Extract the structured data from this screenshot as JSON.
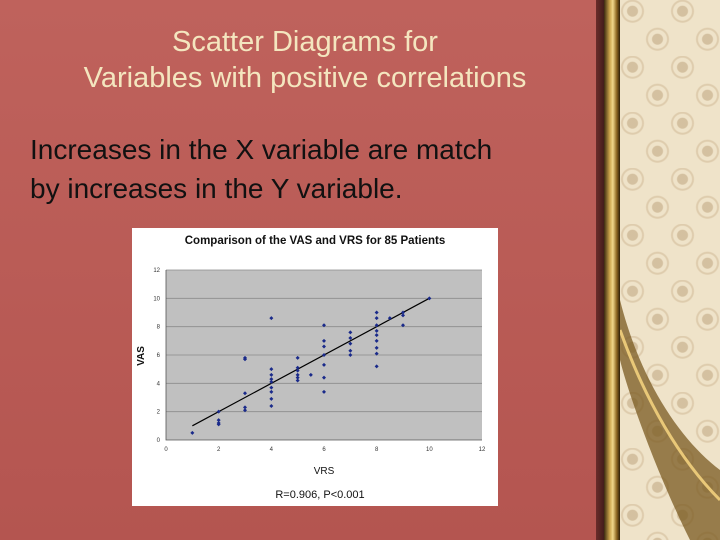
{
  "slide": {
    "title_line1": "Scatter Diagrams for",
    "title_line2": "Variables with positive correlations",
    "body_line1": "Increases in the X variable are match",
    "body_line2": "by increases in the Y variable."
  },
  "colors": {
    "slide_background": "#b85a55",
    "title_text": "#f4e6bf",
    "plot_area": "#c0c0c0",
    "points": "#1a2a8a",
    "trendline": "#000000"
  },
  "chart_data": {
    "type": "scatter",
    "title": "Comparison of the VAS and VRS for 85 Patients",
    "xlabel": "VRS",
    "ylabel": "VAS",
    "annotation": "R=0.906, P<0.001",
    "xlim": [
      0,
      12
    ],
    "ylim": [
      0,
      12
    ],
    "x_ticks": [
      "0",
      "2",
      "4",
      "6",
      "8",
      "10",
      "12"
    ],
    "y_ticks": [
      "0",
      "2",
      "4",
      "6",
      "8",
      "10",
      "12"
    ],
    "grid": true,
    "legend": "none",
    "trendline": {
      "x": [
        1,
        10
      ],
      "y": [
        1.0,
        10.0
      ]
    },
    "points": [
      {
        "x": 1,
        "y": 0.5
      },
      {
        "x": 2,
        "y": 1.2
      },
      {
        "x": 2,
        "y": 1.4
      },
      {
        "x": 2,
        "y": 2.0
      },
      {
        "x": 2,
        "y": 1.1
      },
      {
        "x": 3,
        "y": 2.3
      },
      {
        "x": 3,
        "y": 2.1
      },
      {
        "x": 3,
        "y": 3.3
      },
      {
        "x": 3,
        "y": 5.8
      },
      {
        "x": 3,
        "y": 5.7
      },
      {
        "x": 4,
        "y": 2.4
      },
      {
        "x": 4,
        "y": 2.9
      },
      {
        "x": 4,
        "y": 3.4
      },
      {
        "x": 4,
        "y": 3.7
      },
      {
        "x": 4,
        "y": 4.1
      },
      {
        "x": 4,
        "y": 4.3
      },
      {
        "x": 4,
        "y": 4.6
      },
      {
        "x": 4,
        "y": 5.0
      },
      {
        "x": 4,
        "y": 8.6
      },
      {
        "x": 5,
        "y": 4.2
      },
      {
        "x": 5,
        "y": 4.4
      },
      {
        "x": 5,
        "y": 4.6
      },
      {
        "x": 5,
        "y": 4.9
      },
      {
        "x": 5,
        "y": 5.1
      },
      {
        "x": 5,
        "y": 5.8
      },
      {
        "x": 5.5,
        "y": 4.6
      },
      {
        "x": 6,
        "y": 3.4
      },
      {
        "x": 6,
        "y": 4.4
      },
      {
        "x": 6,
        "y": 5.3
      },
      {
        "x": 6,
        "y": 6.0
      },
      {
        "x": 6,
        "y": 6.6
      },
      {
        "x": 6,
        "y": 7.0
      },
      {
        "x": 6,
        "y": 8.1
      },
      {
        "x": 7,
        "y": 6.0
      },
      {
        "x": 7,
        "y": 6.3
      },
      {
        "x": 7,
        "y": 6.8
      },
      {
        "x": 7,
        "y": 7.2
      },
      {
        "x": 7,
        "y": 7.6
      },
      {
        "x": 8,
        "y": 5.2
      },
      {
        "x": 8,
        "y": 6.1
      },
      {
        "x": 8,
        "y": 6.5
      },
      {
        "x": 8,
        "y": 7.0
      },
      {
        "x": 8,
        "y": 7.4
      },
      {
        "x": 8,
        "y": 7.7
      },
      {
        "x": 8,
        "y": 8.1
      },
      {
        "x": 8,
        "y": 8.6
      },
      {
        "x": 8,
        "y": 9.0
      },
      {
        "x": 8.5,
        "y": 8.6
      },
      {
        "x": 9,
        "y": 8.1
      },
      {
        "x": 9,
        "y": 8.8
      },
      {
        "x": 9,
        "y": 9.0
      },
      {
        "x": 10,
        "y": 10.0
      }
    ]
  }
}
